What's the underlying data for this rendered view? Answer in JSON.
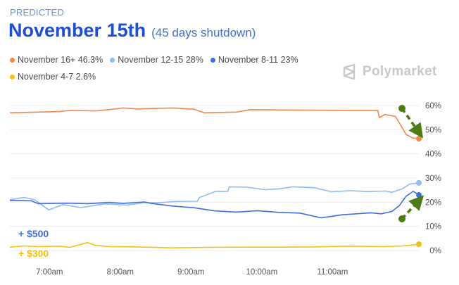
{
  "header": {
    "kicker": "PREDICTED",
    "title": "November 15th",
    "subtitle": "(45 days shutdown)"
  },
  "brand": {
    "name": "Polymarket",
    "icon": "polymarket-logo-icon"
  },
  "legend": [
    {
      "label": "November 16+ 46.3%",
      "color": "#f08a4b"
    },
    {
      "label": "November 12-15 28%",
      "color": "#8ebdf5"
    },
    {
      "label": "November 8-11 23%",
      "color": "#3f6fdc"
    },
    {
      "label": "November 4-7 2.6%",
      "color": "#f4c20d"
    }
  ],
  "annotations": {
    "plus_500": "+ $500",
    "plus_300": "+ $300",
    "plus_500_color": "#3f6fdc",
    "plus_300_color": "#f4c20d",
    "arrow_color": "#4a7c12"
  },
  "chart_data": {
    "type": "line",
    "title": "",
    "xlabel": "",
    "ylabel": "",
    "x_ticks": [
      "7:00am",
      "8:00am",
      "9:00am",
      "10:00am",
      "11:00am"
    ],
    "x_tick_positions": [
      6.76,
      7.76,
      8.76,
      9.76,
      10.76
    ],
    "xlim": [
      6.2,
      11.98
    ],
    "y_ticks": [
      "0%",
      "10%",
      "20%",
      "30%",
      "40%",
      "50%",
      "60%"
    ],
    "y_tick_values": [
      0,
      10,
      20,
      30,
      40,
      50,
      60
    ],
    "ylim": [
      0,
      60
    ],
    "grid": "horizontal",
    "series": [
      {
        "name": "November 16+",
        "color": "#f08a4b",
        "points": [
          [
            6.2,
            57
          ],
          [
            6.6,
            57.3
          ],
          [
            6.9,
            57.5
          ],
          [
            7.05,
            58
          ],
          [
            7.4,
            57.8
          ],
          [
            7.6,
            58.3
          ],
          [
            7.8,
            59
          ],
          [
            8.0,
            58.6
          ],
          [
            8.25,
            58.8
          ],
          [
            8.5,
            59
          ],
          [
            8.8,
            58.5
          ],
          [
            8.95,
            57
          ],
          [
            9.4,
            57.3
          ],
          [
            9.6,
            58.3
          ],
          [
            10.0,
            58.2
          ],
          [
            10.5,
            58.1
          ],
          [
            11.0,
            58
          ],
          [
            11.4,
            58
          ],
          [
            11.42,
            55
          ],
          [
            11.5,
            56.3
          ],
          [
            11.65,
            55.5
          ],
          [
            11.72,
            52
          ],
          [
            11.8,
            48
          ],
          [
            11.9,
            46.5
          ],
          [
            11.98,
            46.3
          ]
        ]
      },
      {
        "name": "November 12-15",
        "color": "#8ebdf5",
        "points": [
          [
            6.2,
            21
          ],
          [
            6.4,
            22
          ],
          [
            6.55,
            21
          ],
          [
            6.75,
            16.8
          ],
          [
            6.95,
            19
          ],
          [
            7.2,
            17.8
          ],
          [
            7.55,
            19.3
          ],
          [
            7.85,
            18.8
          ],
          [
            8.1,
            19.8
          ],
          [
            8.3,
            19.8
          ],
          [
            8.55,
            20.3
          ],
          [
            8.85,
            20.4
          ],
          [
            8.88,
            22
          ],
          [
            8.95,
            22.7
          ],
          [
            9.1,
            24.4
          ],
          [
            9.28,
            24.5
          ],
          [
            9.3,
            26.4
          ],
          [
            9.55,
            26.2
          ],
          [
            9.8,
            25.2
          ],
          [
            10.0,
            25.5
          ],
          [
            10.2,
            26.4
          ],
          [
            10.5,
            26
          ],
          [
            10.75,
            24.3
          ],
          [
            11.0,
            24.8
          ],
          [
            11.25,
            24.4
          ],
          [
            11.5,
            24.6
          ],
          [
            11.6,
            24.1
          ],
          [
            11.75,
            25.6
          ],
          [
            11.85,
            27.5
          ],
          [
            11.98,
            28
          ]
        ]
      },
      {
        "name": "November 8-11",
        "color": "#3f6fdc",
        "points": [
          [
            6.2,
            20.7
          ],
          [
            6.5,
            20.6
          ],
          [
            6.6,
            19.4
          ],
          [
            7.0,
            19.6
          ],
          [
            7.3,
            19.4
          ],
          [
            7.6,
            19.9
          ],
          [
            7.8,
            19.5
          ],
          [
            8.1,
            20.1
          ],
          [
            8.2,
            19.5
          ],
          [
            8.5,
            18.4
          ],
          [
            8.8,
            17.7
          ],
          [
            9.1,
            16.4
          ],
          [
            9.4,
            15.9
          ],
          [
            9.7,
            16.5
          ],
          [
            10.0,
            15.8
          ],
          [
            10.3,
            15.5
          ],
          [
            10.6,
            13.5
          ],
          [
            10.9,
            14.8
          ],
          [
            11.1,
            15.2
          ],
          [
            11.3,
            15.6
          ],
          [
            11.45,
            15.2
          ],
          [
            11.6,
            16.2
          ],
          [
            11.7,
            18.5
          ],
          [
            11.8,
            22.5
          ],
          [
            11.9,
            24.5
          ],
          [
            11.98,
            23
          ]
        ]
      },
      {
        "name": "November 4-7",
        "color": "#f4c20d",
        "points": [
          [
            6.2,
            1.4
          ],
          [
            6.4,
            1.9
          ],
          [
            6.6,
            1.6
          ],
          [
            6.9,
            1.8
          ],
          [
            7.05,
            1.3
          ],
          [
            7.3,
            3.3
          ],
          [
            7.4,
            2.2
          ],
          [
            7.6,
            1.6
          ],
          [
            8.0,
            1.5
          ],
          [
            8.5,
            1.1
          ],
          [
            9.0,
            1.3
          ],
          [
            9.5,
            1.4
          ],
          [
            10.0,
            1.4
          ],
          [
            10.5,
            1.5
          ],
          [
            11.0,
            1.8
          ],
          [
            11.5,
            1.6
          ],
          [
            11.75,
            1.9
          ],
          [
            11.98,
            2.6
          ]
        ]
      }
    ]
  }
}
